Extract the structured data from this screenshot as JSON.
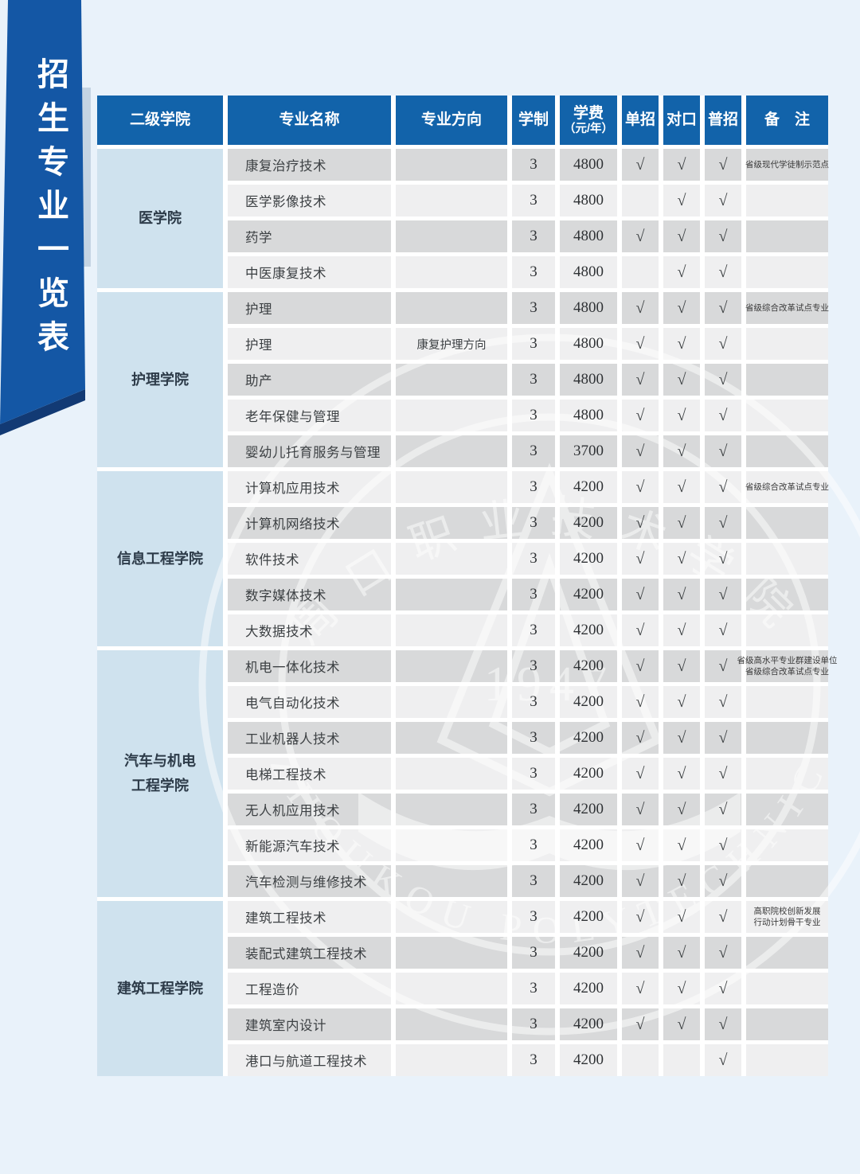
{
  "banner": {
    "title": "招生专业一览表"
  },
  "watermark": {
    "top_arc": "周口职业技术学院",
    "bottom_arc": "ZHOUKOU POLYTECHNIC",
    "year": "1947"
  },
  "table": {
    "headers": {
      "college": "二级学院",
      "major": "专业名称",
      "direction": "专业方向",
      "duration": "学制",
      "tuition_line1": "学费",
      "tuition_line2": "（元/年）",
      "dan": "单招",
      "dui": "对口",
      "pu": "普招",
      "remark": "备　注"
    },
    "check_glyph": "√",
    "colleges": [
      {
        "name": "医学院",
        "lines": [
          "医学院"
        ],
        "row_span": 4
      },
      {
        "name": "护理学院",
        "lines": [
          "护理学院"
        ],
        "row_span": 5
      },
      {
        "name": "信息工程学院",
        "lines": [
          "信息工程学院"
        ],
        "row_span": 5
      },
      {
        "name": "汽车与机电工程学院",
        "lines": [
          "汽车与机电",
          "工程学院"
        ],
        "row_span": 7
      },
      {
        "name": "建筑工程学院",
        "lines": [
          "建筑工程学院"
        ],
        "row_span": 5
      }
    ],
    "rows": [
      {
        "major": "康复治疗技术",
        "direction": "",
        "duration": "3",
        "tuition": "4800",
        "dan": true,
        "dui": true,
        "pu": true,
        "remark": [
          "省级现代学徒制示范点"
        ]
      },
      {
        "major": "医学影像技术",
        "direction": "",
        "duration": "3",
        "tuition": "4800",
        "dan": false,
        "dui": true,
        "pu": true,
        "remark": []
      },
      {
        "major": "药学",
        "direction": "",
        "duration": "3",
        "tuition": "4800",
        "dan": true,
        "dui": true,
        "pu": true,
        "remark": []
      },
      {
        "major": "中医康复技术",
        "direction": "",
        "duration": "3",
        "tuition": "4800",
        "dan": false,
        "dui": true,
        "pu": true,
        "remark": []
      },
      {
        "major": "护理",
        "direction": "",
        "duration": "3",
        "tuition": "4800",
        "dan": true,
        "dui": true,
        "pu": true,
        "remark": [
          "省级综合改革试点专业"
        ]
      },
      {
        "major": "护理",
        "direction": "康复护理方向",
        "duration": "3",
        "tuition": "4800",
        "dan": true,
        "dui": true,
        "pu": true,
        "remark": []
      },
      {
        "major": "助产",
        "direction": "",
        "duration": "3",
        "tuition": "4800",
        "dan": true,
        "dui": true,
        "pu": true,
        "remark": []
      },
      {
        "major": "老年保健与管理",
        "direction": "",
        "duration": "3",
        "tuition": "4800",
        "dan": true,
        "dui": true,
        "pu": true,
        "remark": []
      },
      {
        "major": "婴幼儿托育服务与管理",
        "direction": "",
        "duration": "3",
        "tuition": "3700",
        "dan": true,
        "dui": true,
        "pu": true,
        "remark": []
      },
      {
        "major": "计算机应用技术",
        "direction": "",
        "duration": "3",
        "tuition": "4200",
        "dan": true,
        "dui": true,
        "pu": true,
        "remark": [
          "省级综合改革试点专业"
        ]
      },
      {
        "major": "计算机网络技术",
        "direction": "",
        "duration": "3",
        "tuition": "4200",
        "dan": true,
        "dui": true,
        "pu": true,
        "remark": []
      },
      {
        "major": "软件技术",
        "direction": "",
        "duration": "3",
        "tuition": "4200",
        "dan": true,
        "dui": true,
        "pu": true,
        "remark": []
      },
      {
        "major": "数字媒体技术",
        "direction": "",
        "duration": "3",
        "tuition": "4200",
        "dan": true,
        "dui": true,
        "pu": true,
        "remark": []
      },
      {
        "major": "大数据技术",
        "direction": "",
        "duration": "3",
        "tuition": "4200",
        "dan": true,
        "dui": true,
        "pu": true,
        "remark": []
      },
      {
        "major": "机电一体化技术",
        "direction": "",
        "duration": "3",
        "tuition": "4200",
        "dan": true,
        "dui": true,
        "pu": true,
        "remark": [
          "省级高水平专业群建设单位",
          "省级综合改革试点专业"
        ]
      },
      {
        "major": "电气自动化技术",
        "direction": "",
        "duration": "3",
        "tuition": "4200",
        "dan": true,
        "dui": true,
        "pu": true,
        "remark": []
      },
      {
        "major": "工业机器人技术",
        "direction": "",
        "duration": "3",
        "tuition": "4200",
        "dan": true,
        "dui": true,
        "pu": true,
        "remark": []
      },
      {
        "major": "电梯工程技术",
        "direction": "",
        "duration": "3",
        "tuition": "4200",
        "dan": true,
        "dui": true,
        "pu": true,
        "remark": []
      },
      {
        "major": "无人机应用技术",
        "direction": "",
        "duration": "3",
        "tuition": "4200",
        "dan": true,
        "dui": true,
        "pu": true,
        "remark": []
      },
      {
        "major": "新能源汽车技术",
        "direction": "",
        "duration": "3",
        "tuition": "4200",
        "dan": true,
        "dui": true,
        "pu": true,
        "remark": []
      },
      {
        "major": "汽车检测与维修技术",
        "direction": "",
        "duration": "3",
        "tuition": "4200",
        "dan": true,
        "dui": true,
        "pu": true,
        "remark": []
      },
      {
        "major": "建筑工程技术",
        "direction": "",
        "duration": "3",
        "tuition": "4200",
        "dan": true,
        "dui": true,
        "pu": true,
        "remark": [
          "高职院校创新发展",
          "行动计划骨干专业"
        ]
      },
      {
        "major": "装配式建筑工程技术",
        "direction": "",
        "duration": "3",
        "tuition": "4200",
        "dan": true,
        "dui": true,
        "pu": true,
        "remark": []
      },
      {
        "major": "工程造价",
        "direction": "",
        "duration": "3",
        "tuition": "4200",
        "dan": true,
        "dui": true,
        "pu": true,
        "remark": []
      },
      {
        "major": "建筑室内设计",
        "direction": "",
        "duration": "3",
        "tuition": "4200",
        "dan": true,
        "dui": true,
        "pu": true,
        "remark": []
      },
      {
        "major": "港口与航道工程技术",
        "direction": "",
        "duration": "3",
        "tuition": "4200",
        "dan": false,
        "dui": false,
        "pu": true,
        "remark": []
      }
    ]
  },
  "colors": {
    "header_blue": "#1263aa",
    "ribbon_blue": "#1457a5",
    "ribbon_fold": "#123a74",
    "ribbon_strip": "#c4d4e3",
    "row_dark": "#d8d9da",
    "row_light": "#efeff0",
    "college_cell": "#cfe2ee",
    "page_bg": "#e9f2fa",
    "table_bg": "#ffffff",
    "text_dark": "#3c4043",
    "college_text": "#2d3b49",
    "header_text": "#ffffff"
  }
}
